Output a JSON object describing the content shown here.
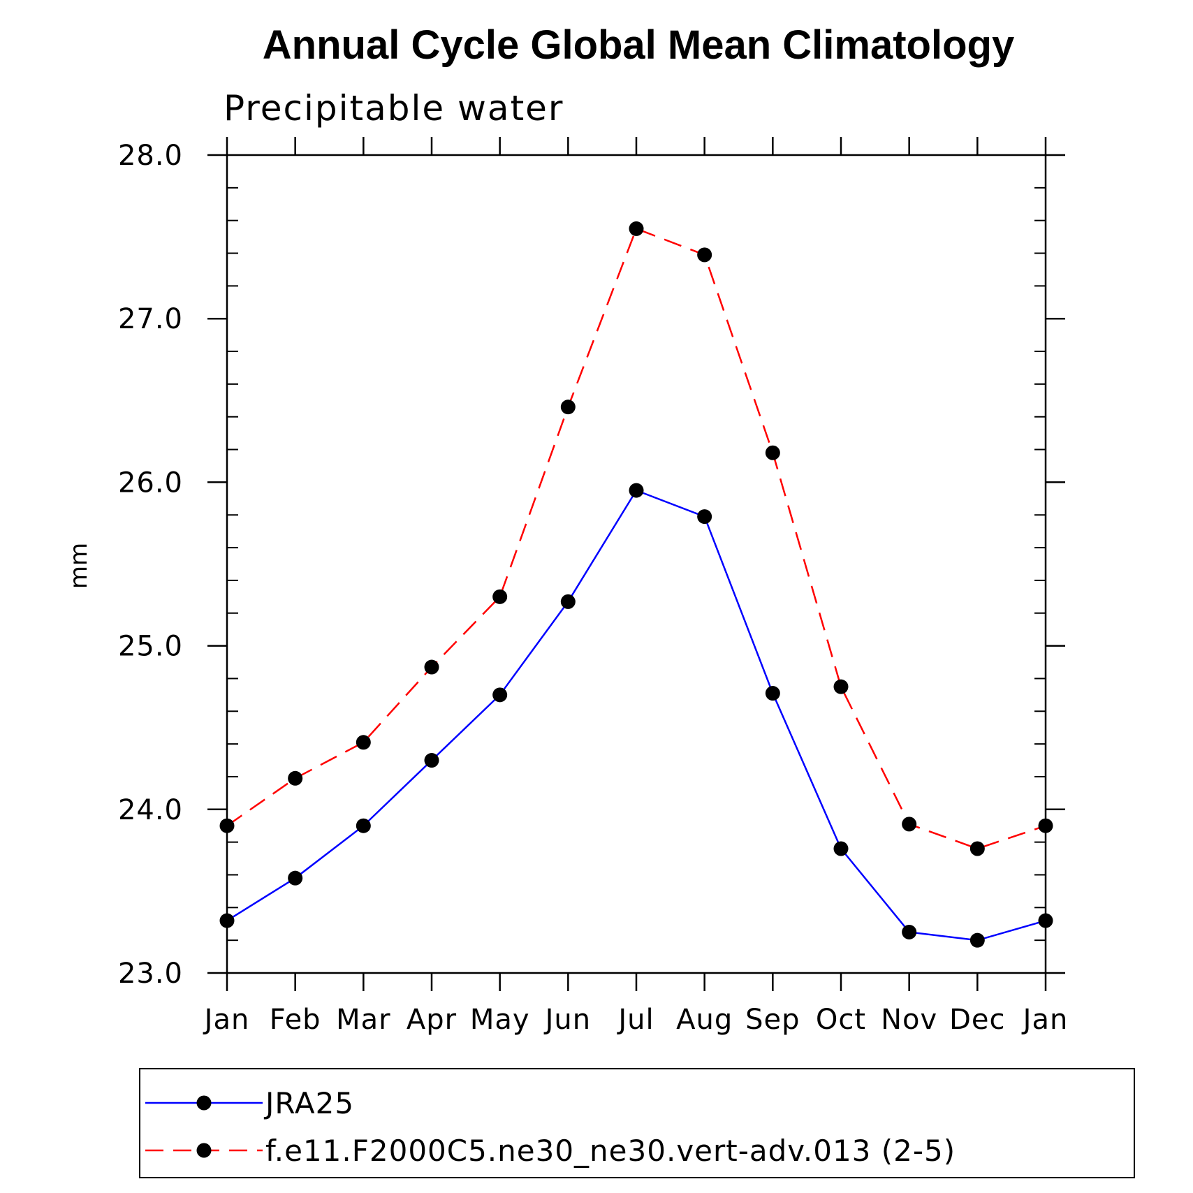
{
  "chart_data": {
    "type": "line",
    "title": "Annual Cycle Global Mean Climatology",
    "subtitle": "Precipitable water",
    "xlabel": "",
    "ylabel": "mm",
    "categories": [
      "Jan",
      "Feb",
      "Mar",
      "Apr",
      "May",
      "Jun",
      "Jul",
      "Aug",
      "Sep",
      "Oct",
      "Nov",
      "Dec",
      "Jan"
    ],
    "ylim": [
      23.0,
      28.0
    ],
    "yticks": [
      "23.0",
      "24.0",
      "25.0",
      "26.0",
      "27.0",
      "28.0"
    ],
    "grid": false,
    "legend_position": "bottom",
    "series": [
      {
        "name": "JRA25",
        "color": "#0000ff",
        "line_style": "solid",
        "marker": "filled-circle",
        "values": [
          23.32,
          23.58,
          23.9,
          24.3,
          24.7,
          25.27,
          25.95,
          25.79,
          24.71,
          23.76,
          23.25,
          23.2,
          23.32
        ]
      },
      {
        "name": "f.e11.F2000C5.ne30_ne30.vert-adv.013 (2-5)",
        "color": "#ff0000",
        "line_style": "dashed",
        "marker": "filled-circle",
        "values": [
          23.9,
          24.19,
          24.41,
          24.87,
          25.3,
          26.46,
          27.55,
          27.39,
          26.18,
          24.75,
          23.91,
          23.76,
          23.9
        ]
      }
    ]
  }
}
